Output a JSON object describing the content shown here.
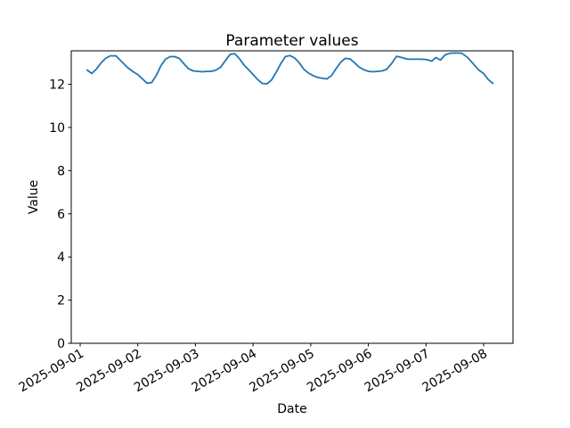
{
  "chart_data": {
    "type": "line",
    "title": "Parameter values",
    "xlabel": "Date",
    "ylabel": "Value",
    "legend": "none",
    "grid": false,
    "line_color": "#1f77b4",
    "axis_color": "#000000",
    "background_color": "#ffffff",
    "ylim": [
      0,
      13.55
    ],
    "yticks": [
      0,
      2,
      4,
      6,
      8,
      10,
      12
    ],
    "xlim_days": [
      -0.155,
      7.51
    ],
    "x_tick_days": [
      0,
      1,
      2,
      3,
      4,
      5,
      6,
      7
    ],
    "x_tick_labels": [
      "2025-09-01",
      "2025-09-02",
      "2025-09-03",
      "2025-09-04",
      "2025-09-05",
      "2025-09-06",
      "2025-09-07",
      "2025-09-08"
    ],
    "x_days": [
      0.12,
      0.2,
      0.28,
      0.36,
      0.44,
      0.52,
      0.62,
      0.72,
      0.82,
      0.92,
      1.0,
      1.08,
      1.16,
      1.24,
      1.32,
      1.4,
      1.48,
      1.56,
      1.64,
      1.72,
      1.8,
      1.88,
      1.96,
      2.04,
      2.12,
      2.2,
      2.28,
      2.36,
      2.44,
      2.52,
      2.6,
      2.68,
      2.76,
      2.84,
      2.92,
      3.0,
      3.08,
      3.16,
      3.24,
      3.32,
      3.4,
      3.48,
      3.56,
      3.64,
      3.72,
      3.8,
      3.88,
      3.96,
      4.04,
      4.12,
      4.2,
      4.28,
      4.36,
      4.44,
      4.52,
      4.6,
      4.68,
      4.76,
      4.84,
      4.92,
      5.0,
      5.08,
      5.16,
      5.24,
      5.32,
      5.4,
      5.49,
      5.58,
      5.68,
      5.8,
      5.92,
      6.02,
      6.1,
      6.17,
      6.25,
      6.33,
      6.42,
      6.52,
      6.62,
      6.72,
      6.82,
      6.92,
      7.0,
      7.08,
      7.16
    ],
    "values": [
      12.66,
      12.5,
      12.7,
      12.98,
      13.2,
      13.32,
      13.32,
      13.05,
      12.78,
      12.58,
      12.45,
      12.25,
      12.05,
      12.08,
      12.4,
      12.85,
      13.16,
      13.28,
      13.28,
      13.2,
      12.95,
      12.72,
      12.62,
      12.6,
      12.58,
      12.6,
      12.6,
      12.66,
      12.8,
      13.1,
      13.38,
      13.42,
      13.2,
      12.9,
      12.68,
      12.45,
      12.22,
      12.04,
      12.02,
      12.2,
      12.55,
      12.95,
      13.28,
      13.33,
      13.22,
      13.0,
      12.7,
      12.52,
      12.4,
      12.32,
      12.28,
      12.25,
      12.4,
      12.72,
      13.02,
      13.2,
      13.18,
      13.0,
      12.8,
      12.68,
      12.6,
      12.58,
      12.6,
      12.62,
      12.7,
      12.95,
      13.3,
      13.24,
      13.16,
      13.16,
      13.16,
      13.14,
      13.07,
      13.24,
      13.12,
      13.36,
      13.44,
      13.45,
      13.44,
      13.25,
      12.95,
      12.65,
      12.5,
      12.22,
      12.04
    ]
  }
}
